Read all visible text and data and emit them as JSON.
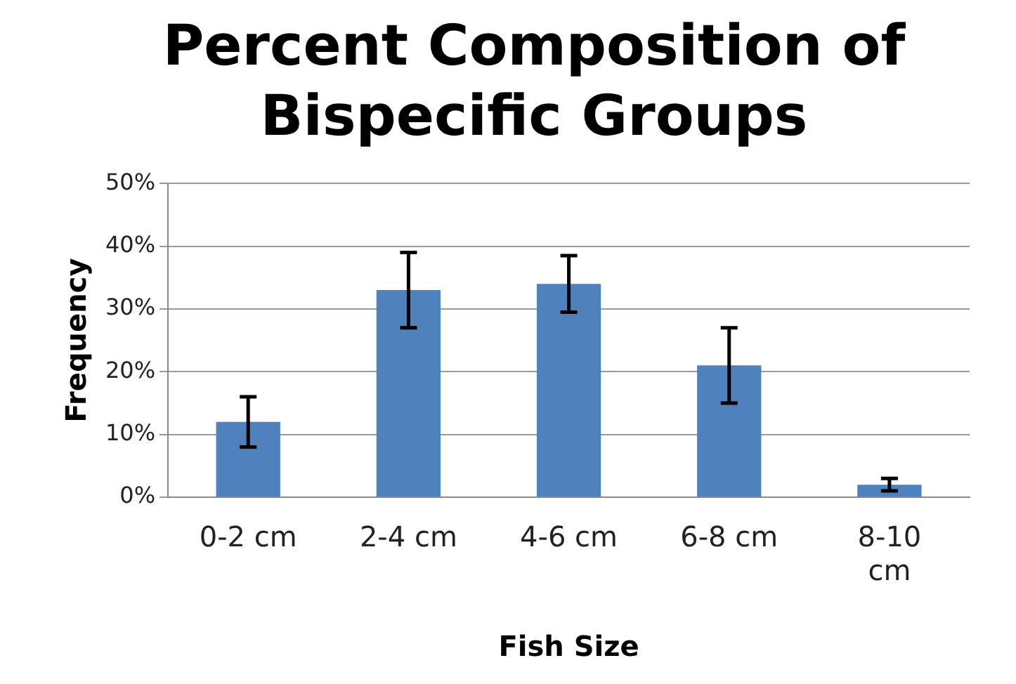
{
  "chart_data": {
    "type": "bar",
    "title": "Percent Composition of Bispecific Groups",
    "xlabel": "Fish Size",
    "ylabel": "Frequency",
    "categories": [
      "0-2 cm",
      "2-4 cm",
      "4-6 cm",
      "6-8 cm",
      "8-10 cm"
    ],
    "values": [
      12,
      33,
      34,
      21,
      2
    ],
    "errors": [
      4,
      6,
      4.5,
      6,
      1
    ],
    "color": "#4f81bd",
    "ylim": [
      0,
      50
    ],
    "yticks": [
      {
        "value": 0,
        "label": "0%"
      },
      {
        "value": 10,
        "label": "10%"
      },
      {
        "value": 20,
        "label": "20%"
      },
      {
        "value": 30,
        "label": "30%"
      },
      {
        "value": 40,
        "label": "40%"
      },
      {
        "value": 50,
        "label": "50%"
      }
    ],
    "grid": "y",
    "legend": false
  }
}
